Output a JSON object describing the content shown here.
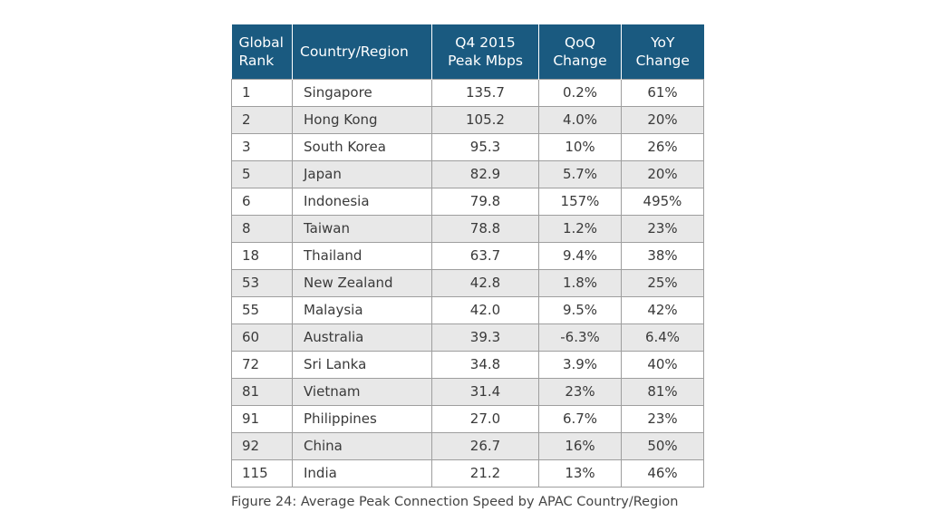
{
  "chart_data": {
    "type": "table",
    "columns": [
      "Global Rank",
      "Country/Region",
      "Q4 2015 Peak Mbps",
      "QoQ Change",
      "YoY Change"
    ],
    "header_lines": [
      [
        "Global",
        "Rank"
      ],
      [
        "Country/Region"
      ],
      [
        "Q4 2015",
        "Peak Mbps"
      ],
      [
        "QoQ",
        "Change"
      ],
      [
        "YoY",
        "Change"
      ]
    ],
    "rows": [
      [
        "1",
        "Singapore",
        "135.7",
        "0.2%",
        "61%"
      ],
      [
        "2",
        "Hong Kong",
        "105.2",
        "4.0%",
        "20%"
      ],
      [
        "3",
        "South Korea",
        "95.3",
        "10%",
        "26%"
      ],
      [
        "5",
        "Japan",
        "82.9",
        "5.7%",
        "20%"
      ],
      [
        "6",
        "Indonesia",
        "79.8",
        "157%",
        "495%"
      ],
      [
        "8",
        "Taiwan",
        "78.8",
        "1.2%",
        "23%"
      ],
      [
        "18",
        "Thailand",
        "63.7",
        "9.4%",
        "38%"
      ],
      [
        "53",
        "New Zealand",
        "42.8",
        "1.8%",
        "25%"
      ],
      [
        "55",
        "Malaysia",
        "42.0",
        "9.5%",
        "42%"
      ],
      [
        "60",
        "Australia",
        "39.3",
        "-6.3%",
        "6.4%"
      ],
      [
        "72",
        "Sri Lanka",
        "34.8",
        "3.9%",
        "40%"
      ],
      [
        "81",
        "Vietnam",
        "31.4",
        "23%",
        "81%"
      ],
      [
        "91",
        "Philippines",
        "27.0",
        "6.7%",
        "23%"
      ],
      [
        "92",
        "China",
        "26.7",
        "16%",
        "50%"
      ],
      [
        "115",
        "India",
        "21.2",
        "13%",
        "46%"
      ]
    ],
    "caption": "Figure 24: Average Peak Connection Speed by APAC Country/Region"
  },
  "colors": {
    "header_bg": "#1a5a80",
    "header_text": "#ffffff",
    "alt_row_bg": "#e8e8e8",
    "border": "#9e9e9e"
  }
}
